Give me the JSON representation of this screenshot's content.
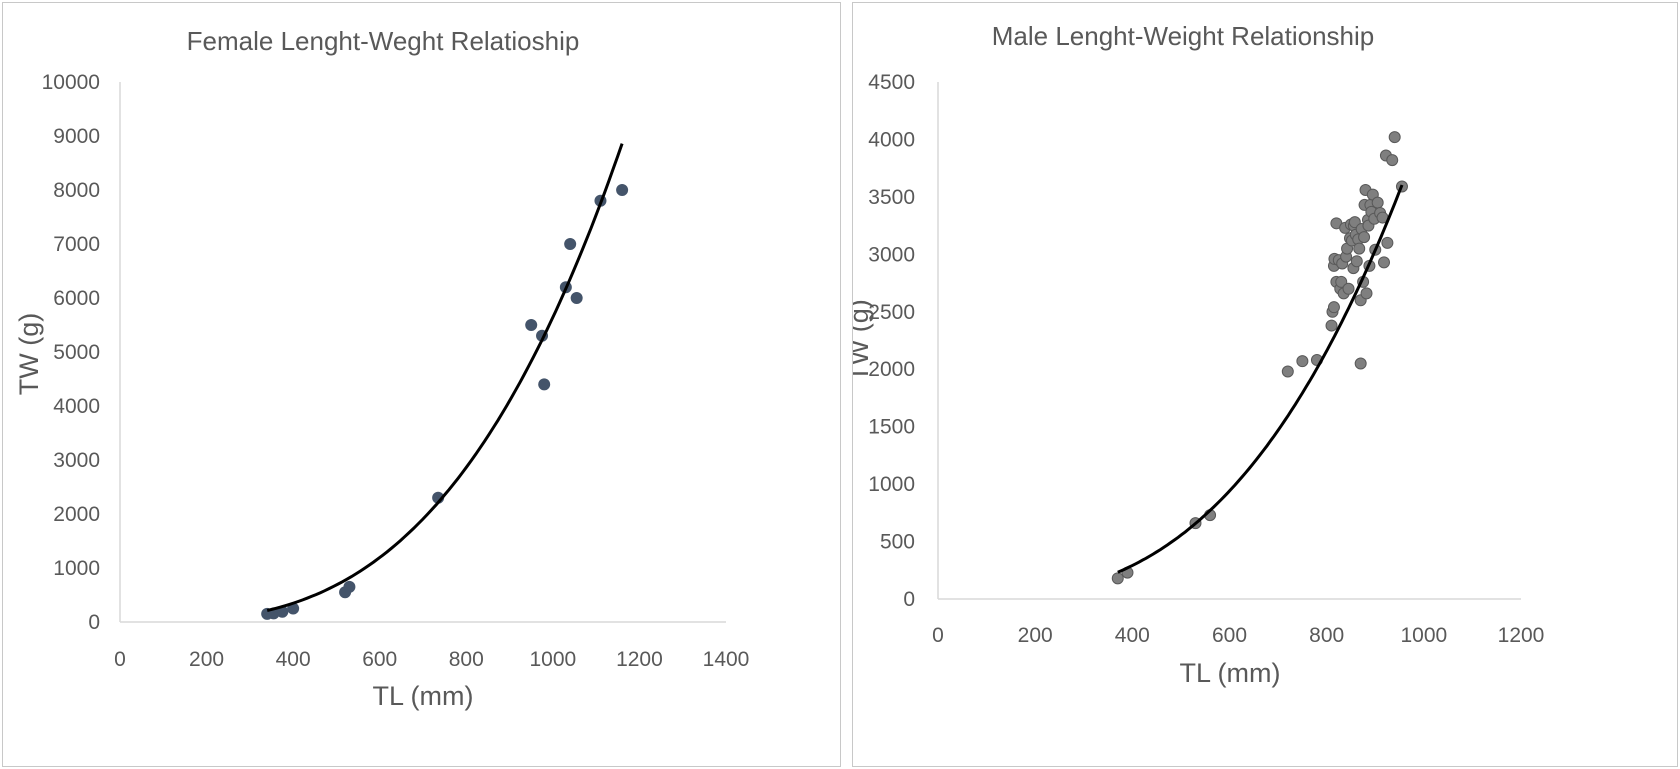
{
  "chart_data": [
    {
      "type": "scatter",
      "title": "Female Lenght-Weght Relatioship",
      "xlabel": "TL (mm)",
      "ylabel": "TW (g)",
      "xlim": [
        0,
        1400
      ],
      "ylim": [
        0,
        10000
      ],
      "xticks": [
        "0",
        "200",
        "400",
        "600",
        "800",
        "1000",
        "1200",
        "1400"
      ],
      "yticks": [
        "0",
        "1000",
        "2000",
        "3000",
        "4000",
        "5000",
        "6000",
        "7000",
        "8000",
        "9000",
        "10000"
      ],
      "grid": false,
      "marker_color": "#44546a",
      "series": [
        {
          "points": [
            [
              340,
              150
            ],
            [
              355,
              160
            ],
            [
              375,
              190
            ],
            [
              400,
              250
            ],
            [
              520,
              550
            ],
            [
              530,
              650
            ],
            [
              735,
              2300
            ],
            [
              950,
              5500
            ],
            [
              975,
              5300
            ],
            [
              980,
              4400
            ],
            [
              1030,
              6200
            ],
            [
              1040,
              7000
            ],
            [
              1055,
              6000
            ],
            [
              1110,
              7800
            ],
            [
              1160,
              8000
            ]
          ]
        }
      ],
      "trendline": {
        "type": "power",
        "a": 4.28e-06,
        "b": 3.04,
        "x_range": [
          340,
          1160
        ],
        "color": "#000000"
      }
    },
    {
      "type": "scatter",
      "title": "Male Lenght-Weight Relationship",
      "xlabel": "TL (mm)",
      "ylabel": "TW (g)",
      "xlim": [
        0,
        1200
      ],
      "ylim": [
        0,
        4500
      ],
      "xticks": [
        "0",
        "200",
        "400",
        "600",
        "800",
        "1000",
        "1200"
      ],
      "yticks": [
        "0",
        "500",
        "1000",
        "1500",
        "2000",
        "2500",
        "3000",
        "3500",
        "4000",
        "4500"
      ],
      "grid": false,
      "marker_color": "#7f7f7f",
      "series": [
        {
          "points": [
            [
              370,
              180
            ],
            [
              390,
              230
            ],
            [
              530,
              660
            ],
            [
              560,
              730
            ],
            [
              720,
              1980
            ],
            [
              750,
              2070
            ],
            [
              780,
              2080
            ],
            [
              810,
              2380
            ],
            [
              812,
              2500
            ],
            [
              815,
              2540
            ],
            [
              815,
              2900
            ],
            [
              816,
              2960
            ],
            [
              820,
              2760
            ],
            [
              820,
              3270
            ],
            [
              825,
              2950
            ],
            [
              828,
              2700
            ],
            [
              830,
              2760
            ],
            [
              832,
              2920
            ],
            [
              835,
              2660
            ],
            [
              838,
              3230
            ],
            [
              840,
              2980
            ],
            [
              842,
              3050
            ],
            [
              845,
              2700
            ],
            [
              848,
              3140
            ],
            [
              850,
              3260
            ],
            [
              852,
              3120
            ],
            [
              855,
              2880
            ],
            [
              856,
              3250
            ],
            [
              858,
              3280
            ],
            [
              860,
              3170
            ],
            [
              862,
              2940
            ],
            [
              865,
              3130
            ],
            [
              867,
              3050
            ],
            [
              870,
              2600
            ],
            [
              870,
              2050
            ],
            [
              872,
              3220
            ],
            [
              875,
              2760
            ],
            [
              877,
              3150
            ],
            [
              878,
              3430
            ],
            [
              880,
              3560
            ],
            [
              882,
              2660
            ],
            [
              885,
              3300
            ],
            [
              886,
              3250
            ],
            [
              888,
              2900
            ],
            [
              890,
              3430
            ],
            [
              892,
              3370
            ],
            [
              895,
              3520
            ],
            [
              898,
              3310
            ],
            [
              900,
              3040
            ],
            [
              905,
              3450
            ],
            [
              910,
              3360
            ],
            [
              915,
              3320
            ],
            [
              918,
              2930
            ],
            [
              922,
              3860
            ],
            [
              925,
              3100
            ],
            [
              935,
              3820
            ],
            [
              940,
              4020
            ],
            [
              955,
              3590
            ]
          ]
        }
      ],
      "trendline": {
        "type": "power",
        "a": 8.8e-06,
        "b": 2.89,
        "x_range": [
          370,
          955
        ],
        "color": "#000000"
      }
    }
  ]
}
